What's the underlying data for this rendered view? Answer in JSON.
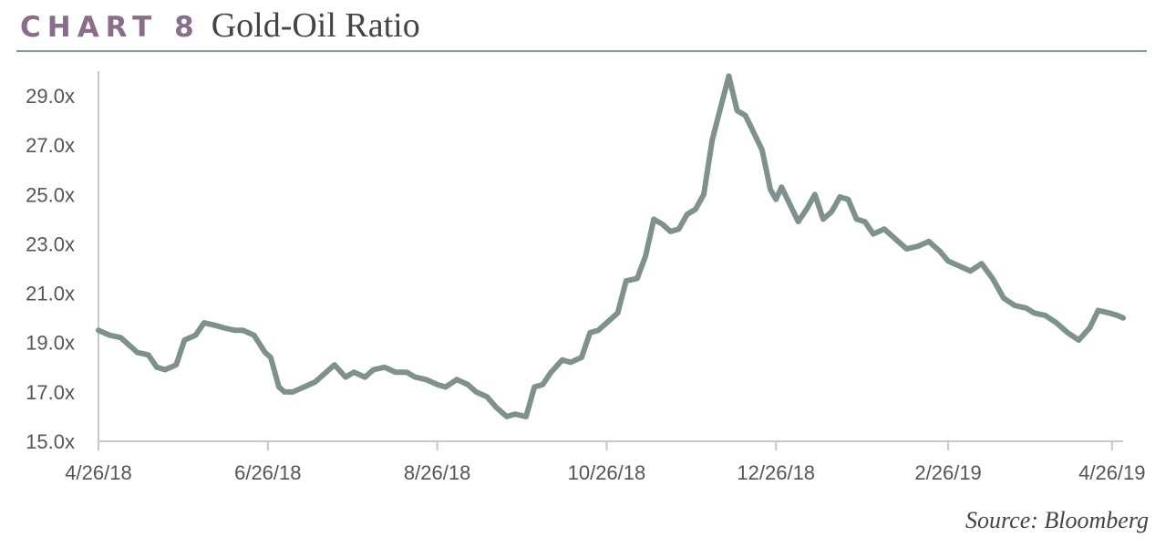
{
  "header": {
    "chart_number": "CHART 8",
    "title": "Gold-Oil Ratio"
  },
  "source": "Source: Bloomberg",
  "colors": {
    "line": "#7f918d",
    "accent": "#8a6d8a",
    "rule": "#7f9f98",
    "axis": "#c8c8c8"
  },
  "chart_data": {
    "type": "line",
    "title": "Gold-Oil Ratio",
    "xlabel": "",
    "ylabel": "",
    "xlim": [
      "4/26/18",
      "4/30/19"
    ],
    "ylim": [
      15.0,
      30.0
    ],
    "grid": false,
    "y_ticks": [
      15.0,
      17.0,
      19.0,
      21.0,
      23.0,
      25.0,
      27.0,
      29.0
    ],
    "y_tick_labels": [
      "15.0x",
      "17.0x",
      "19.0x",
      "21.0x",
      "23.0x",
      "25.0x",
      "27.0x",
      "29.0x"
    ],
    "x_tick_labels": [
      "4/26/18",
      "6/26/18",
      "8/26/18",
      "10/26/18",
      "12/26/18",
      "2/26/19",
      "4/26/19"
    ],
    "x_ticks": [
      "2018-04-26",
      "2018-06-26",
      "2018-08-26",
      "2018-10-26",
      "2018-12-26",
      "2019-02-26",
      "2019-04-26"
    ],
    "series": [
      {
        "name": "",
        "x": [
          "2018-04-26",
          "2018-04-30",
          "2018-05-04",
          "2018-05-08",
          "2018-05-10",
          "2018-05-14",
          "2018-05-17",
          "2018-05-20",
          "2018-05-24",
          "2018-05-27",
          "2018-05-31",
          "2018-06-03",
          "2018-06-07",
          "2018-06-10",
          "2018-06-14",
          "2018-06-17",
          "2018-06-21",
          "2018-06-25",
          "2018-06-27",
          "2018-06-30",
          "2018-07-02",
          "2018-07-05",
          "2018-07-09",
          "2018-07-13",
          "2018-07-17",
          "2018-07-20",
          "2018-07-24",
          "2018-07-27",
          "2018-07-31",
          "2018-08-03",
          "2018-08-07",
          "2018-08-11",
          "2018-08-15",
          "2018-08-18",
          "2018-08-22",
          "2018-08-26",
          "2018-08-29",
          "2018-09-02",
          "2018-09-06",
          "2018-09-09",
          "2018-09-13",
          "2018-09-16",
          "2018-09-20",
          "2018-09-23",
          "2018-09-27",
          "2018-09-30",
          "2018-10-03",
          "2018-10-06",
          "2018-10-10",
          "2018-10-13",
          "2018-10-17",
          "2018-10-20",
          "2018-10-23",
          "2018-10-26",
          "2018-10-30",
          "2018-11-02",
          "2018-11-06",
          "2018-11-09",
          "2018-11-12",
          "2018-11-15",
          "2018-11-18",
          "2018-11-21",
          "2018-11-24",
          "2018-11-27",
          "2018-11-30",
          "2018-12-03",
          "2018-12-06",
          "2018-12-09",
          "2018-12-12",
          "2018-12-15",
          "2018-12-18",
          "2018-12-21",
          "2018-12-24",
          "2018-12-26",
          "2018-12-28",
          "2018-12-31",
          "2019-01-03",
          "2019-01-06",
          "2019-01-09",
          "2019-01-12",
          "2019-01-15",
          "2019-01-18",
          "2019-01-21",
          "2019-01-24",
          "2019-01-27",
          "2019-01-30",
          "2019-02-03",
          "2019-02-07",
          "2019-02-11",
          "2019-02-15",
          "2019-02-19",
          "2019-02-23",
          "2019-02-26",
          "2019-03-02",
          "2019-03-06",
          "2019-03-10",
          "2019-03-14",
          "2019-03-18",
          "2019-03-22",
          "2019-03-26",
          "2019-03-29",
          "2019-04-02",
          "2019-04-06",
          "2019-04-10",
          "2019-04-14",
          "2019-04-18",
          "2019-04-21",
          "2019-04-25",
          "2019-04-28",
          "2019-04-30"
        ],
        "y": [
          19.5,
          19.3,
          19.2,
          18.8,
          18.6,
          18.5,
          18.0,
          17.9,
          18.1,
          19.1,
          19.3,
          19.8,
          19.7,
          19.6,
          19.5,
          19.5,
          19.3,
          18.6,
          18.4,
          17.2,
          17.0,
          17.0,
          17.2,
          17.4,
          17.8,
          18.1,
          17.6,
          17.8,
          17.6,
          17.9,
          18.0,
          17.8,
          17.8,
          17.6,
          17.5,
          17.3,
          17.2,
          17.5,
          17.3,
          17.0,
          16.8,
          16.4,
          16.0,
          16.1,
          16.0,
          17.2,
          17.3,
          17.8,
          18.3,
          18.2,
          18.4,
          19.4,
          19.5,
          19.8,
          20.2,
          21.5,
          21.6,
          22.5,
          24.0,
          23.8,
          23.5,
          23.6,
          24.2,
          24.4,
          25.0,
          27.2,
          28.5,
          29.8,
          28.4,
          28.2,
          27.5,
          26.8,
          25.2,
          24.8,
          25.3,
          24.6,
          23.9,
          24.4,
          25.0,
          24.0,
          24.3,
          24.9,
          24.8,
          24.0,
          23.9,
          23.4,
          23.6,
          23.2,
          22.8,
          22.9,
          23.1,
          22.7,
          22.3,
          22.1,
          21.9,
          22.2,
          21.6,
          20.8,
          20.5,
          20.4,
          20.2,
          20.1,
          19.8,
          19.4,
          19.1,
          19.6,
          20.3,
          20.2,
          20.1,
          20.0
        ]
      }
    ]
  }
}
